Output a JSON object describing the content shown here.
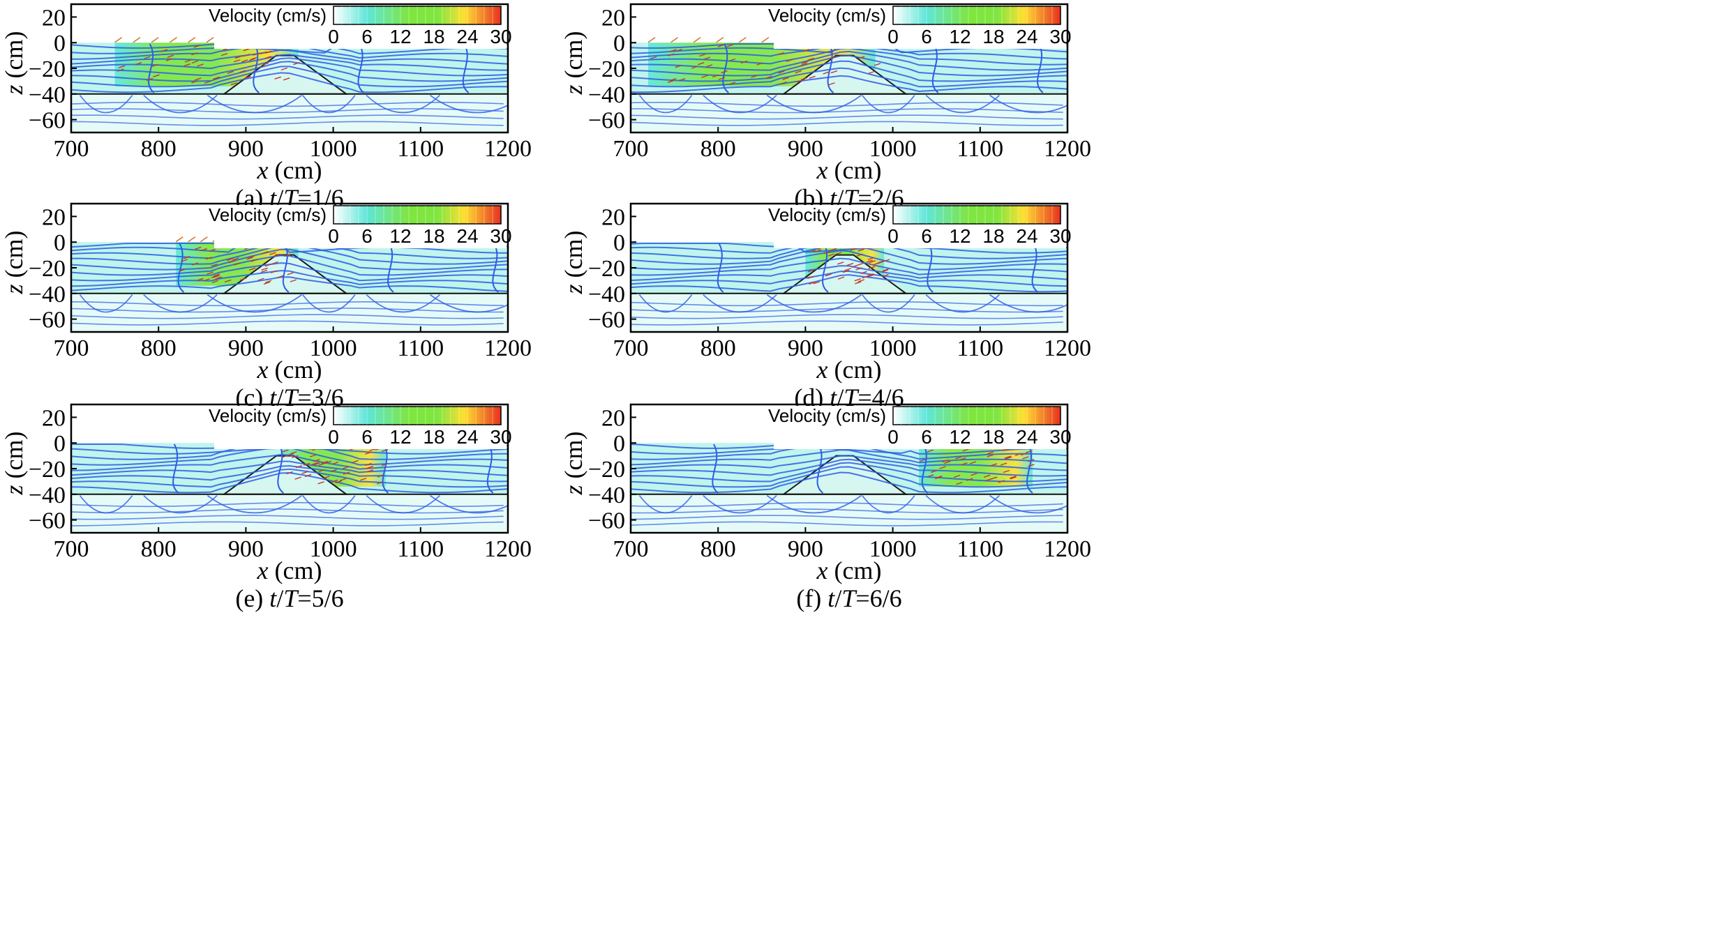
{
  "chart_data": [
    {
      "type": "streamline-contour",
      "panel": "a",
      "caption_prefix": "(a) ",
      "caption_t": "t",
      "caption_slash": "/",
      "caption_T": "T",
      "caption_value": "=1/6",
      "xlabel_var": "x",
      "xlabel_unit": " (cm)",
      "ylabel_var": "z",
      "ylabel_unit": " (cm)",
      "xlim": [
        700,
        1200
      ],
      "ylim": [
        -70,
        30
      ],
      "xticks": [
        "700",
        "800",
        "900",
        "1000",
        "1100",
        "1200"
      ],
      "yticks": [
        "20",
        "0",
        "−20",
        "−40",
        "−60"
      ],
      "colorbar": {
        "title": "Velocity (cm/s)",
        "range": [
          0,
          30
        ],
        "ticks": [
          "0",
          "6",
          "12",
          "18",
          "24",
          "30"
        ]
      },
      "colormap": [
        "#ffffff",
        "#5ee6d9",
        "#7fe640",
        "#ffe030",
        "#e83020"
      ],
      "bed_level": -40,
      "structure": {
        "toe_left_x": 875,
        "crest_left_x": 935,
        "crest_right_x": 955,
        "toe_right_x": 1015,
        "crest_z": -10,
        "base_z": -40
      },
      "hot_zone_x": [
        750,
        960
      ]
    },
    {
      "type": "streamline-contour",
      "panel": "b",
      "caption_prefix": "(b) ",
      "caption_t": "t",
      "caption_slash": "/",
      "caption_T": "T",
      "caption_value": "=2/6",
      "xlabel_var": "x",
      "xlabel_unit": " (cm)",
      "ylabel_var": "z",
      "ylabel_unit": " (cm)",
      "xlim": [
        700,
        1200
      ],
      "ylim": [
        -70,
        30
      ],
      "xticks": [
        "700",
        "800",
        "900",
        "1000",
        "1100",
        "1200"
      ],
      "yticks": [
        "20",
        "0",
        "−20",
        "−40",
        "−60"
      ],
      "colorbar": {
        "title": "Velocity (cm/s)",
        "range": [
          0,
          30
        ],
        "ticks": [
          "0",
          "6",
          "12",
          "18",
          "24",
          "30"
        ]
      },
      "colormap": [
        "#ffffff",
        "#5ee6d9",
        "#7fe640",
        "#ffe030",
        "#e83020"
      ],
      "bed_level": -40,
      "structure": {
        "toe_left_x": 875,
        "crest_left_x": 935,
        "crest_right_x": 955,
        "toe_right_x": 1015,
        "crest_z": -10,
        "base_z": -40
      },
      "hot_zone_x": [
        720,
        980
      ]
    },
    {
      "type": "streamline-contour",
      "panel": "c",
      "caption_prefix": "(c) ",
      "caption_t": "t",
      "caption_slash": "/",
      "caption_T": "T",
      "caption_value": "=3/6",
      "xlabel_var": "x",
      "xlabel_unit": " (cm)",
      "ylabel_var": "z",
      "ylabel_unit": " (cm)",
      "xlim": [
        700,
        1200
      ],
      "ylim": [
        -70,
        30
      ],
      "xticks": [
        "700",
        "800",
        "900",
        "1000",
        "1100",
        "1200"
      ],
      "yticks": [
        "20",
        "0",
        "−20",
        "−40",
        "−60"
      ],
      "colorbar": {
        "title": "Velocity (cm/s)",
        "range": [
          0,
          30
        ],
        "ticks": [
          "0",
          "6",
          "12",
          "18",
          "24",
          "30"
        ]
      },
      "colormap": [
        "#ffffff",
        "#5ee6d9",
        "#7fe640",
        "#ffe030",
        "#e83020"
      ],
      "bed_level": -40,
      "structure": {
        "toe_left_x": 875,
        "crest_left_x": 935,
        "crest_right_x": 955,
        "toe_right_x": 1015,
        "crest_z": -10,
        "base_z": -40
      },
      "hot_zone_x": [
        820,
        960
      ]
    },
    {
      "type": "streamline-contour",
      "panel": "d",
      "caption_prefix": "(d) ",
      "caption_t": "t",
      "caption_slash": "/",
      "caption_T": "T",
      "caption_value": "=4/6",
      "xlabel_var": "x",
      "xlabel_unit": " (cm)",
      "ylabel_var": "z",
      "ylabel_unit": " (cm)",
      "xlim": [
        700,
        1200
      ],
      "ylim": [
        -70,
        30
      ],
      "xticks": [
        "700",
        "800",
        "900",
        "1000",
        "1100",
        "1200"
      ],
      "yticks": [
        "20",
        "0",
        "−20",
        "−40",
        "−60"
      ],
      "colorbar": {
        "title": "Velocity (cm/s)",
        "range": [
          0,
          30
        ],
        "ticks": [
          "0",
          "6",
          "12",
          "18",
          "24",
          "30"
        ]
      },
      "colormap": [
        "#ffffff",
        "#5ee6d9",
        "#7fe640",
        "#ffe030",
        "#e83020"
      ],
      "bed_level": -40,
      "structure": {
        "toe_left_x": 875,
        "crest_left_x": 935,
        "crest_right_x": 955,
        "toe_right_x": 1015,
        "crest_z": -10,
        "base_z": -40
      },
      "hot_zone_x": [
        900,
        990
      ]
    },
    {
      "type": "streamline-contour",
      "panel": "e",
      "caption_prefix": "(e) ",
      "caption_t": "t",
      "caption_slash": "/",
      "caption_T": "T",
      "caption_value": "=5/6",
      "xlabel_var": "x",
      "xlabel_unit": " (cm)",
      "ylabel_var": "z",
      "ylabel_unit": " (cm)",
      "xlim": [
        700,
        1200
      ],
      "ylim": [
        -70,
        30
      ],
      "xticks": [
        "700",
        "800",
        "900",
        "1000",
        "1100",
        "1200"
      ],
      "yticks": [
        "20",
        "0",
        "−20",
        "−40",
        "−60"
      ],
      "colorbar": {
        "title": "Velocity (cm/s)",
        "range": [
          0,
          30
        ],
        "ticks": [
          "0",
          "6",
          "12",
          "18",
          "24",
          "30"
        ]
      },
      "colormap": [
        "#ffffff",
        "#5ee6d9",
        "#7fe640",
        "#ffe030",
        "#e83020"
      ],
      "bed_level": -40,
      "structure": {
        "toe_left_x": 875,
        "crest_left_x": 935,
        "crest_right_x": 955,
        "toe_right_x": 1015,
        "crest_z": -10,
        "base_z": -40
      },
      "hot_zone_x": [
        940,
        1060
      ]
    },
    {
      "type": "streamline-contour",
      "panel": "f",
      "caption_prefix": "(f) ",
      "caption_t": "t",
      "caption_slash": "/",
      "caption_T": "T",
      "caption_value": "=6/6",
      "xlabel_var": "x",
      "xlabel_unit": " (cm)",
      "ylabel_var": "z",
      "ylabel_unit": " (cm)",
      "xlim": [
        700,
        1200
      ],
      "ylim": [
        -70,
        30
      ],
      "xticks": [
        "700",
        "800",
        "900",
        "1000",
        "1100",
        "1200"
      ],
      "yticks": [
        "20",
        "0",
        "−20",
        "−40",
        "−60"
      ],
      "colorbar": {
        "title": "Velocity (cm/s)",
        "range": [
          0,
          30
        ],
        "ticks": [
          "0",
          "6",
          "12",
          "18",
          "24",
          "30"
        ]
      },
      "colormap": [
        "#ffffff",
        "#5ee6d9",
        "#7fe640",
        "#ffe030",
        "#e83020"
      ],
      "bed_level": -40,
      "structure": {
        "toe_left_x": 875,
        "crest_left_x": 935,
        "crest_right_x": 955,
        "toe_right_x": 1015,
        "crest_z": -10,
        "base_z": -40
      },
      "hot_zone_x": [
        1030,
        1160
      ]
    }
  ]
}
